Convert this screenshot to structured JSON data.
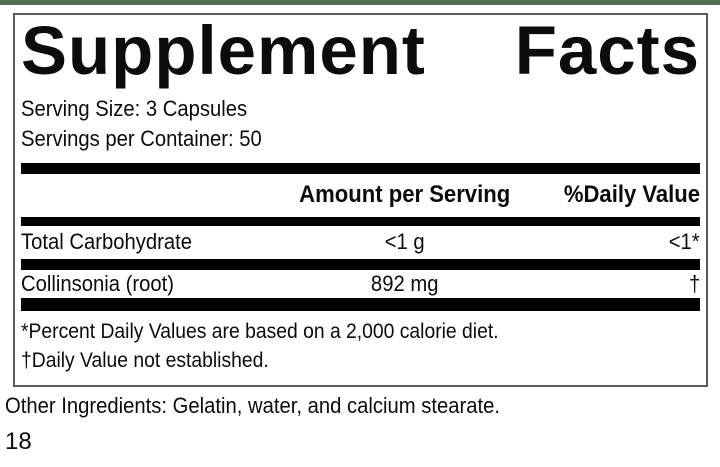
{
  "page": {
    "top_strip_color": "#4e6e52",
    "background_color": "#ffffff",
    "bar_color": "#000000"
  },
  "label": {
    "title_word1": "Supplement",
    "title_word2": "Facts",
    "serving_size": "Serving Size: 3 Capsules",
    "servings_per_container": "Servings per Container: 50",
    "columns": {
      "amount_header": "Amount per Serving",
      "dv_header": "%Daily Value"
    },
    "rows": [
      {
        "name": "Total Carbohydrate",
        "amount": "<1 g",
        "dv": "<1*"
      },
      {
        "name": "Collinsonia (root)",
        "amount": "892 mg",
        "dv": "†"
      }
    ],
    "footnotes": [
      "*Percent Daily Values are based on a 2,000 calorie diet.",
      "†Daily Value not established."
    ]
  },
  "other_ingredients": "Other Ingredients: Gelatin, water, and calcium stearate.",
  "page_number": "18"
}
